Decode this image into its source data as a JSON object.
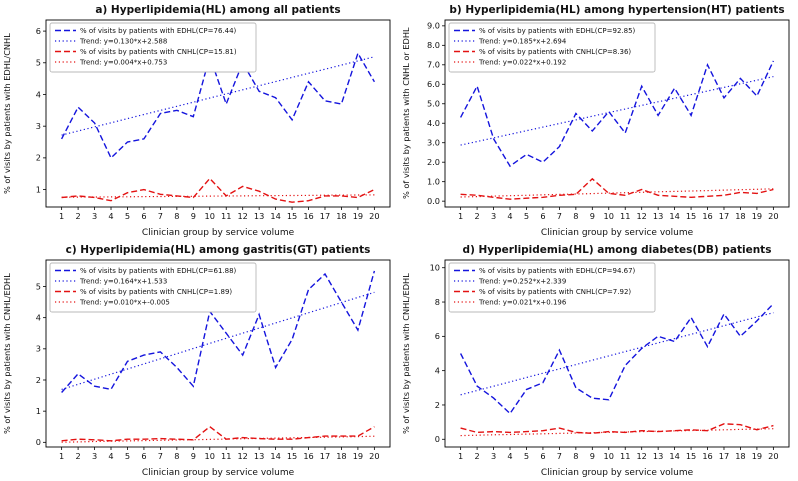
{
  "figure": {
    "colors": {
      "blue": "#1414dd",
      "red": "#e31212",
      "frame": "#000000",
      "legend_border": "#b9b9b9"
    }
  },
  "chart_data": [
    {
      "type": "line",
      "title": "a) Hyperlipidemia(HL) among all patients",
      "xlabel": "Clinician group by service volume",
      "ylabel": "% of visits by patients with EDHL/CNHL",
      "x": [
        1,
        2,
        3,
        4,
        5,
        6,
        7,
        8,
        9,
        10,
        11,
        12,
        13,
        14,
        15,
        16,
        17,
        18,
        19,
        20
      ],
      "ylim": [
        0.45,
        6.35
      ],
      "yticks": [
        1,
        2,
        3,
        4,
        5,
        6
      ],
      "ytick_labels": [
        "1",
        "2",
        "3",
        "4",
        "5",
        "6"
      ],
      "legend_position": "upper left",
      "grid": false,
      "series": [
        {
          "name": "% of visits by patients with EDHL(CP=76.44)",
          "color": "blue",
          "style": "dashed",
          "values": [
            2.6,
            3.6,
            3.1,
            2.0,
            2.5,
            2.6,
            3.4,
            3.5,
            3.3,
            5.2,
            3.7,
            5.0,
            4.1,
            3.9,
            3.2,
            4.4,
            3.8,
            3.7,
            5.3,
            4.4
          ]
        },
        {
          "name": "Trend: y=0.130*x+2.588",
          "color": "blue",
          "style": "dotted",
          "trend": [
            0.13,
            2.588
          ]
        },
        {
          "name": "% of visits by patients with CNHL(CP=15.81)",
          "color": "red",
          "style": "dashed",
          "values": [
            0.75,
            0.8,
            0.75,
            0.65,
            0.9,
            1.0,
            0.85,
            0.8,
            0.75,
            1.35,
            0.8,
            1.1,
            0.95,
            0.7,
            0.6,
            0.65,
            0.8,
            0.8,
            0.75,
            1.0
          ]
        },
        {
          "name": "Trend: y=0.004*x+0.753",
          "color": "red",
          "style": "dotted",
          "trend": [
            0.004,
            0.753
          ]
        }
      ]
    },
    {
      "type": "line",
      "title": "b) Hyperlipidemia(HL) among hypertension(HT) patients",
      "xlabel": "Clinician group by service volume",
      "ylabel": "% of visits by patients with CNHL or EDHL",
      "x": [
        1,
        2,
        3,
        4,
        5,
        6,
        7,
        8,
        9,
        10,
        11,
        12,
        13,
        14,
        15,
        16,
        17,
        18,
        19,
        20
      ],
      "ylim": [
        -0.3,
        9.3
      ],
      "yticks": [
        0,
        1,
        2,
        3,
        4,
        5,
        6,
        7,
        8,
        9
      ],
      "ytick_labels": [
        "0.0",
        "1.0",
        "2.0",
        "3.0",
        "4.0",
        "5.0",
        "6.0",
        "7.0",
        "8.0",
        "9.0"
      ],
      "legend_position": "upper left",
      "grid": false,
      "series": [
        {
          "name": "% of visits by patients with EDHL(CP=92.85)",
          "color": "blue",
          "style": "dashed",
          "values": [
            4.3,
            5.9,
            3.2,
            1.8,
            2.4,
            2.0,
            2.8,
            4.5,
            3.6,
            4.6,
            3.5,
            5.9,
            4.4,
            5.8,
            4.4,
            7.0,
            5.3,
            6.3,
            5.4,
            7.2
          ]
        },
        {
          "name": "Trend: y=0.185*x+2.694",
          "color": "blue",
          "style": "dotted",
          "trend": [
            0.185,
            2.694
          ]
        },
        {
          "name": "% of visits by patients with CNHL(CP=8.36)",
          "color": "red",
          "style": "dashed",
          "values": [
            0.35,
            0.3,
            0.2,
            0.1,
            0.15,
            0.2,
            0.3,
            0.35,
            1.15,
            0.4,
            0.3,
            0.6,
            0.3,
            0.25,
            0.2,
            0.25,
            0.3,
            0.45,
            0.4,
            0.6
          ]
        },
        {
          "name": "Trend: y=0.022*x+0.192",
          "color": "red",
          "style": "dotted",
          "trend": [
            0.022,
            0.192
          ]
        }
      ]
    },
    {
      "type": "line",
      "title": "c) Hyperlipidemia(HL) among gastritis(GT) patients",
      "xlabel": "Clinician group by service volume",
      "ylabel": "% of visits by patients with CNHL/EDHL",
      "x": [
        1,
        2,
        3,
        4,
        5,
        6,
        7,
        8,
        9,
        10,
        11,
        12,
        13,
        14,
        15,
        16,
        17,
        18,
        19,
        20
      ],
      "ylim": [
        -0.15,
        5.85
      ],
      "yticks": [
        0,
        1,
        2,
        3,
        4,
        5
      ],
      "ytick_labels": [
        "0",
        "1",
        "2",
        "3",
        "4",
        "5"
      ],
      "legend_position": "upper left",
      "grid": false,
      "series": [
        {
          "name": "% of visits by patients with EDHL(CP=61.88)",
          "color": "blue",
          "style": "dashed",
          "values": [
            1.6,
            2.2,
            1.8,
            1.7,
            2.6,
            2.8,
            2.9,
            2.4,
            1.8,
            4.2,
            3.5,
            2.8,
            4.1,
            2.4,
            3.3,
            4.9,
            5.4,
            4.5,
            3.6,
            5.5
          ]
        },
        {
          "name": "Trend: y=0.164*x+1.533",
          "color": "blue",
          "style": "dotted",
          "trend": [
            0.164,
            1.533
          ]
        },
        {
          "name": "% of visits by patients with CNHL(CP=1.89)",
          "color": "red",
          "style": "dashed",
          "values": [
            0.05,
            0.1,
            0.08,
            0.05,
            0.1,
            0.1,
            0.12,
            0.1,
            0.08,
            0.5,
            0.1,
            0.15,
            0.12,
            0.1,
            0.1,
            0.15,
            0.2,
            0.2,
            0.2,
            0.5
          ]
        },
        {
          "name": "Trend: y=0.010*x+-0.005",
          "color": "red",
          "style": "dotted",
          "trend": [
            0.01,
            -0.005
          ]
        }
      ]
    },
    {
      "type": "line",
      "title": "d) Hyperlipidemia(HL) among diabetes(DB) patients",
      "xlabel": "Clinician group by service volume",
      "ylabel": "% of visits by patients with CNHL/EDHL",
      "x": [
        1,
        2,
        3,
        4,
        5,
        6,
        7,
        8,
        9,
        10,
        11,
        12,
        13,
        14,
        15,
        16,
        17,
        18,
        19,
        20
      ],
      "ylim": [
        -0.45,
        10.45
      ],
      "yticks": [
        0,
        2,
        4,
        6,
        8,
        10
      ],
      "ytick_labels": [
        "0",
        "2",
        "4",
        "6",
        "8",
        "10"
      ],
      "legend_position": "upper left",
      "grid": false,
      "series": [
        {
          "name": "% of visits by patients with EDHL(CP=94.67)",
          "color": "blue",
          "style": "dashed",
          "values": [
            5.0,
            3.1,
            2.4,
            1.5,
            2.9,
            3.3,
            5.2,
            3.0,
            2.4,
            2.3,
            4.3,
            5.3,
            6.0,
            5.7,
            7.1,
            5.4,
            7.3,
            6.0,
            6.9,
            7.9
          ]
        },
        {
          "name": "Trend: y=0.252*x+2.339",
          "color": "blue",
          "style": "dotted",
          "trend": [
            0.252,
            2.339
          ]
        },
        {
          "name": "% of visits by patients with CNHL(CP=7.92)",
          "color": "red",
          "style": "dashed",
          "values": [
            0.65,
            0.4,
            0.45,
            0.4,
            0.45,
            0.5,
            0.65,
            0.4,
            0.35,
            0.45,
            0.4,
            0.5,
            0.45,
            0.5,
            0.55,
            0.5,
            0.9,
            0.85,
            0.55,
            0.8
          ]
        },
        {
          "name": "Trend: y=0.021*x+0.196",
          "color": "red",
          "style": "dotted",
          "trend": [
            0.021,
            0.196
          ]
        }
      ]
    }
  ]
}
